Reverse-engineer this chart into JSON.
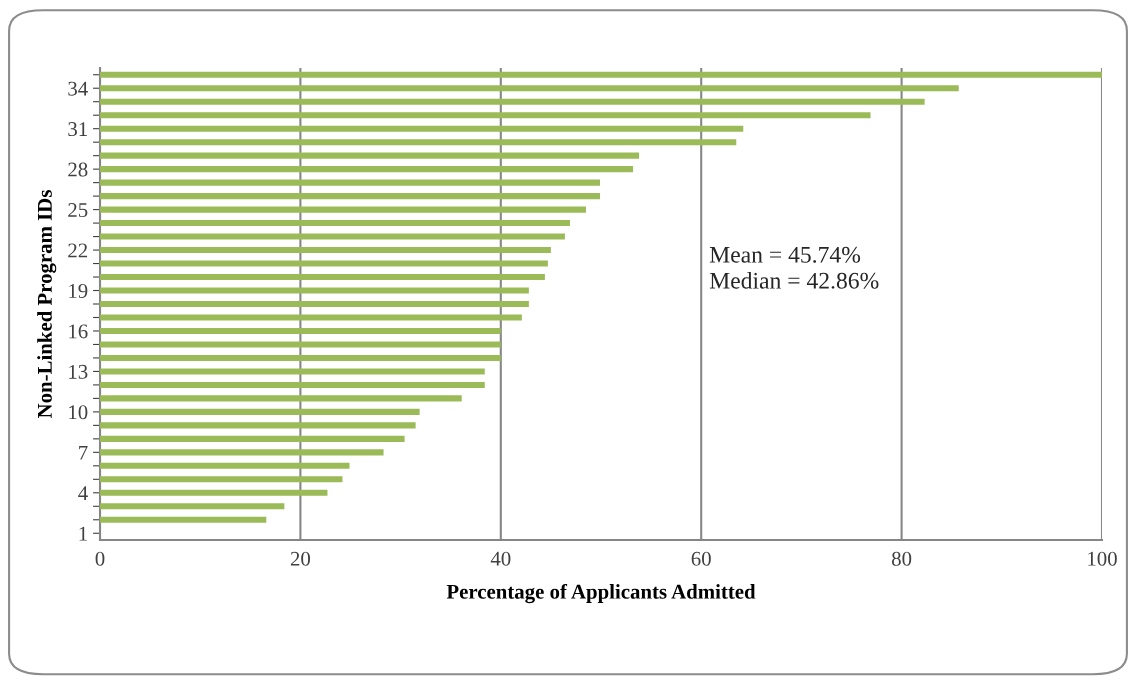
{
  "chart_data": {
    "type": "bar",
    "orientation": "horizontal",
    "xlabel": "Percentage of Applicants Admitted",
    "ylabel": "Non-Linked Program IDs",
    "categories": [
      null,
      "34",
      null,
      null,
      "31",
      null,
      null,
      "28",
      null,
      null,
      "25",
      null,
      null,
      "22",
      null,
      null,
      "19",
      null,
      null,
      "16",
      null,
      null,
      "13",
      null,
      null,
      "10",
      null,
      null,
      "7",
      null,
      null,
      "4",
      null,
      null,
      "1"
    ],
    "values": [
      100,
      85.7,
      82.3,
      76.9,
      64.2,
      63.5,
      53.8,
      53.2,
      49.9,
      49.9,
      48.5,
      46.9,
      46.4,
      45.0,
      44.7,
      44.4,
      42.8,
      42.8,
      42.1,
      40.0,
      40.0,
      40.0,
      38.4,
      38.4,
      36.1,
      31.9,
      31.5,
      30.4,
      28.3,
      24.9,
      24.2,
      22.7,
      18.4,
      16.6,
      0
    ],
    "color": "#9bbb59",
    "xlim": [
      0,
      100
    ],
    "xticks": [
      0,
      20,
      40,
      60,
      80,
      100
    ],
    "grid": "x",
    "annotations": [
      "Mean = 45.74%",
      "Median = 42.86%"
    ]
  }
}
